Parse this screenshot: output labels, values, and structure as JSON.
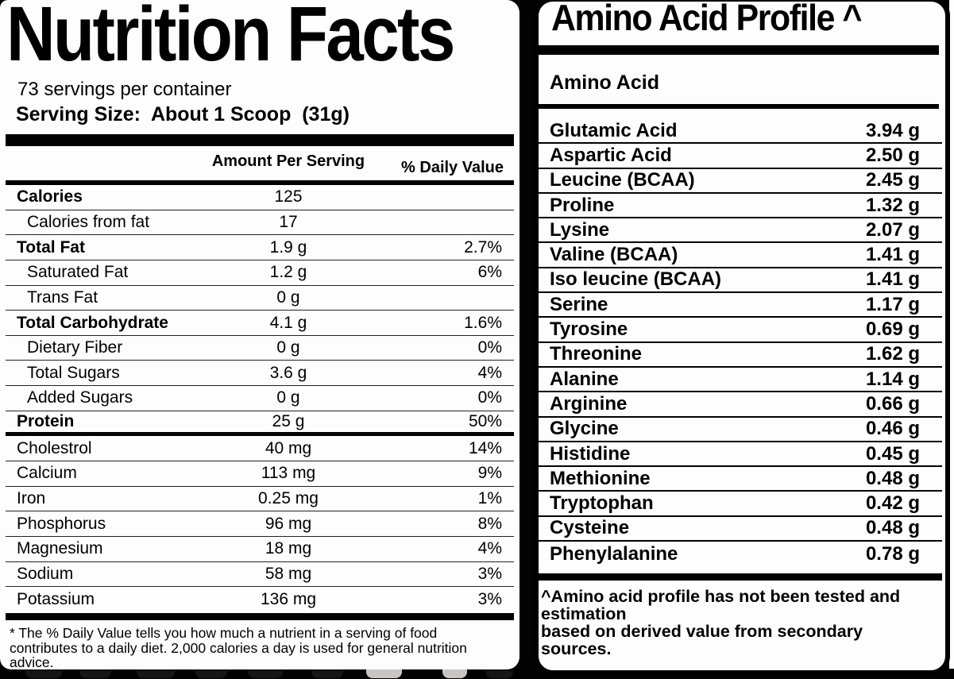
{
  "colors": {
    "panel": "#fdfdfd",
    "text": "#000000",
    "background": "#020202"
  },
  "nutrition_facts": {
    "title": "Nutrition Facts",
    "servings_per_container": "73 servings per container",
    "serving_size": "Serving Size:  About 1 Scoop  (31g)",
    "column_headers": {
      "amount": "Amount Per Serving",
      "daily_value": "% Daily Value"
    },
    "rows": [
      {
        "label": "Calories",
        "amount": "125",
        "dv": "",
        "bold": true,
        "indent": false,
        "sep": "thin"
      },
      {
        "label": "Calories from fat",
        "amount": "17",
        "dv": "",
        "bold": false,
        "indent": true,
        "sep": "thin"
      },
      {
        "label": "Total Fat",
        "amount": "1.9 g",
        "dv": "2.7%",
        "bold": true,
        "indent": false,
        "sep": "thin"
      },
      {
        "label": "Saturated Fat",
        "amount": "1.2 g",
        "dv": "6%",
        "bold": false,
        "indent": true,
        "sep": "thin"
      },
      {
        "label": "Trans Fat",
        "amount": "0 g",
        "dv": "",
        "bold": false,
        "indent": true,
        "sep": "thin"
      },
      {
        "label": "Total Carbohydrate",
        "amount": "4.1 g",
        "dv": "1.6%",
        "bold": true,
        "indent": false,
        "sep": "thin"
      },
      {
        "label": "Dietary Fiber",
        "amount": "0 g",
        "dv": "0%",
        "bold": false,
        "indent": true,
        "sep": "thin"
      },
      {
        "label": "Total Sugars",
        "amount": "3.6 g",
        "dv": "4%",
        "bold": false,
        "indent": true,
        "sep": "thin"
      },
      {
        "label": "Added Sugars",
        "amount": "0 g",
        "dv": "0%",
        "bold": false,
        "indent": true,
        "sep": "thin"
      },
      {
        "label": "Protein",
        "amount": "25 g",
        "dv": "50%",
        "bold": true,
        "indent": false,
        "sep": "thick"
      },
      {
        "label": "Cholestrol",
        "amount": "40 mg",
        "dv": "14%",
        "bold": false,
        "indent": false,
        "sep": "thin"
      },
      {
        "label": "Calcium",
        "amount": "113 mg",
        "dv": "9%",
        "bold": false,
        "indent": false,
        "sep": "thin"
      },
      {
        "label": "Iron",
        "amount": "0.25 mg",
        "dv": "1%",
        "bold": false,
        "indent": false,
        "sep": "thin"
      },
      {
        "label": "Phosphorus",
        "amount": "96 mg",
        "dv": "8%",
        "bold": false,
        "indent": false,
        "sep": "thin"
      },
      {
        "label": "Magnesium",
        "amount": "18 mg",
        "dv": "4%",
        "bold": false,
        "indent": false,
        "sep": "thin"
      },
      {
        "label": "Sodium",
        "amount": "58 mg",
        "dv": "3%",
        "bold": false,
        "indent": false,
        "sep": "thin"
      },
      {
        "label": "Potassium",
        "amount": "136 mg",
        "dv": "3%",
        "bold": false,
        "indent": false,
        "sep": "none"
      }
    ],
    "footnote": "* The % Daily Value tells you how much a nutrient in a serving of food\ncontributes to a daily diet. 2,000 calories a day is used for general nutrition advice."
  },
  "amino_acid_profile": {
    "title": "Amino Acid Profile ^",
    "subheader": "Amino Acid",
    "rows": [
      {
        "name": "Glutamic Acid",
        "amount": "3.94 g"
      },
      {
        "name": "Aspartic Acid",
        "amount": "2.50 g"
      },
      {
        "name": "Leucine (BCAA)",
        "amount": "2.45 g"
      },
      {
        "name": "Proline",
        "amount": "1.32 g"
      },
      {
        "name": "Lysine",
        "amount": "2.07 g"
      },
      {
        "name": "Valine (BCAA)",
        "amount": "1.41 g"
      },
      {
        "name": "Iso leucine (BCAA)",
        "amount": "1.41 g"
      },
      {
        "name": "Serine",
        "amount": "1.17 g"
      },
      {
        "name": "Tyrosine",
        "amount": "0.69 g"
      },
      {
        "name": "Threonine",
        "amount": "1.62 g"
      },
      {
        "name": "Alanine",
        "amount": "1.14 g"
      },
      {
        "name": "Arginine",
        "amount": "0.66 g"
      },
      {
        "name": "Glycine",
        "amount": "0.46 g"
      },
      {
        "name": "Histidine",
        "amount": "0.45 g"
      },
      {
        "name": "Methionine",
        "amount": "0.48 g"
      },
      {
        "name": "Tryptophan",
        "amount": "0.42 g"
      },
      {
        "name": "Cysteine",
        "amount": "0.48 g"
      },
      {
        "name": "Phenylalanine",
        "amount": "0.78 g"
      }
    ],
    "footnote": "^Amino acid profile has not been tested and estimation\nbased on derived value from secondary sources."
  }
}
